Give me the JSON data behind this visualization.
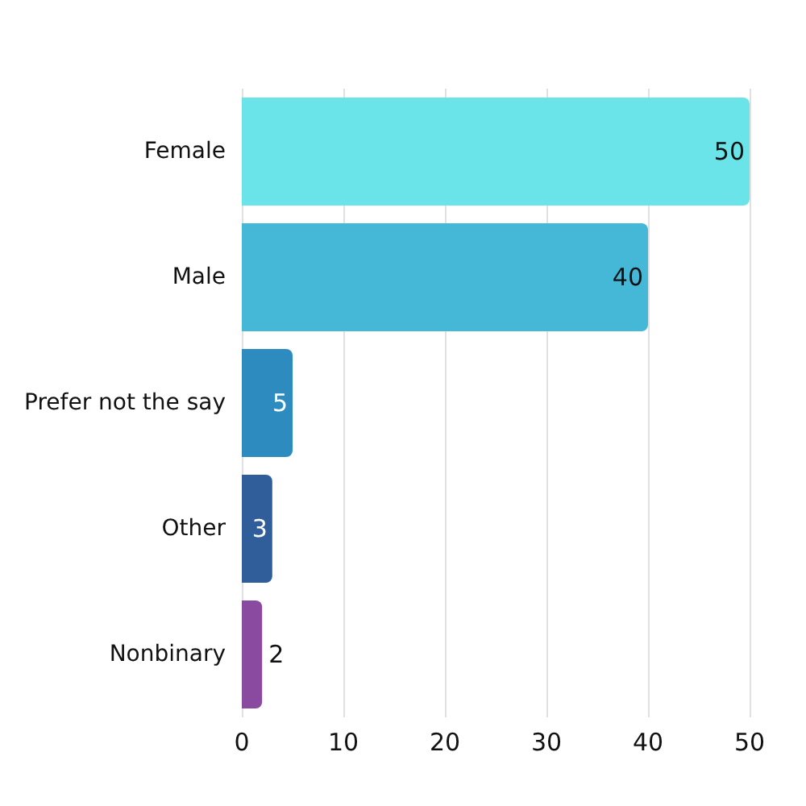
{
  "chart_data": {
    "type": "bar",
    "orientation": "horizontal",
    "categories": [
      "Female",
      "Male",
      "Prefer not the say",
      "Other",
      "Nonbinary"
    ],
    "values": [
      50,
      40,
      5,
      3,
      2
    ],
    "colors": [
      "#6ae4e8",
      "#45b8d8",
      "#2e8bbf",
      "#2f5e9a",
      "#8a4aa0"
    ],
    "xlim": [
      0,
      50
    ],
    "xticks": [
      0,
      10,
      20,
      30,
      40,
      50
    ],
    "grid": "x",
    "data_labels": true
  }
}
